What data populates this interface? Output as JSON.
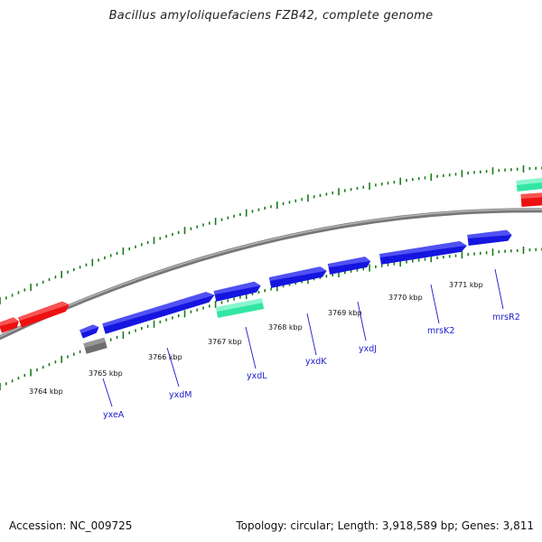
{
  "header": {
    "title": "Bacillus amyloliquefaciens FZB42, complete genome"
  },
  "footer": {
    "accession": "Accession: NC_009725",
    "summary": "Topology: circular; Length: 3,918,589 bp; Genes: 3,811"
  },
  "colors": {
    "backbone": "#888888",
    "tick_marks": "#1a7a1a",
    "gene_forward": "#1515e0",
    "gene_reverse": "#ee1111",
    "gene_rna": "#33e6a4",
    "gene_other": "#6e6e6e",
    "gene_label": "#1a1acc"
  },
  "scale": {
    "unit": "kbp",
    "ticks": [
      {
        "label": "3764 kbp"
      },
      {
        "label": "3765 kbp"
      },
      {
        "label": "3766 kbp"
      },
      {
        "label": "3767 kbp"
      },
      {
        "label": "3768 kbp"
      },
      {
        "label": "3769 kbp"
      },
      {
        "label": "3770 kbp"
      },
      {
        "label": "3771 kbp"
      }
    ]
  },
  "gene_labels": [
    {
      "name": "yxeA"
    },
    {
      "name": "yxdM"
    },
    {
      "name": "yxdL"
    },
    {
      "name": "yxdK"
    },
    {
      "name": "yxdJ"
    },
    {
      "name": "mrsK2"
    },
    {
      "name": "mrsR2"
    }
  ]
}
